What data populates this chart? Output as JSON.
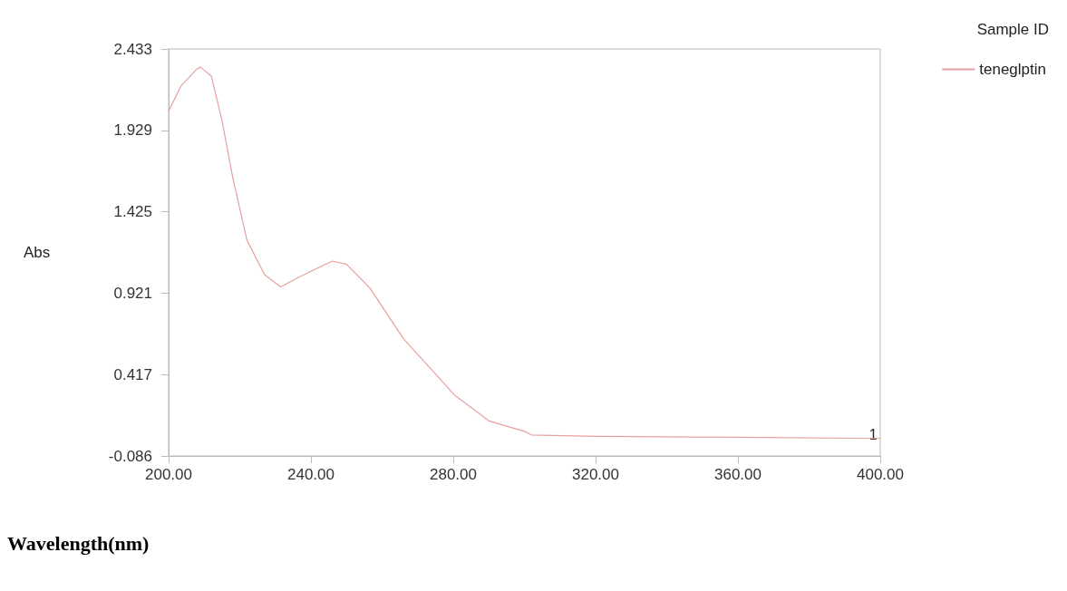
{
  "chart_data": {
    "type": "line",
    "xlabel": "Wavelength(nm)",
    "ylabel": "Abs",
    "legend_title": "Sample ID",
    "legend": "top right",
    "grid": false,
    "marker": "none",
    "x": [
      200,
      203.5,
      208,
      209,
      212,
      215,
      218,
      222,
      227,
      231.5,
      237,
      246,
      250,
      256.5,
      266,
      280.5,
      290,
      300,
      302,
      320,
      360,
      400
    ],
    "series": [
      {
        "name": "teneglptin",
        "color": "#e8a0a0",
        "values": [
          2.048,
          2.205,
          2.31,
          2.32,
          2.265,
          1.99,
          1.64,
          1.25,
          1.035,
          0.96,
          1.025,
          1.12,
          1.1,
          0.955,
          0.64,
          0.288,
          0.131,
          0.066,
          0.044,
          0.035,
          0.03,
          0.022
        ]
      }
    ],
    "xlim": [
      200,
      400
    ],
    "xticks": [
      {
        "value": 200,
        "label": "200.00"
      },
      {
        "value": 240,
        "label": "240.00"
      },
      {
        "value": 280,
        "label": "280.00"
      },
      {
        "value": 320,
        "label": "320.00"
      },
      {
        "value": 360,
        "label": "360.00"
      },
      {
        "value": 400,
        "label": "400.00"
      }
    ],
    "ylim": [
      -0.086,
      2.433
    ],
    "yticks": [
      -0.086,
      0.417,
      0.921,
      1.425,
      1.929,
      2.433
    ],
    "annotations": [
      {
        "text": "1",
        "x": 398,
        "y": 0.0
      }
    ]
  }
}
